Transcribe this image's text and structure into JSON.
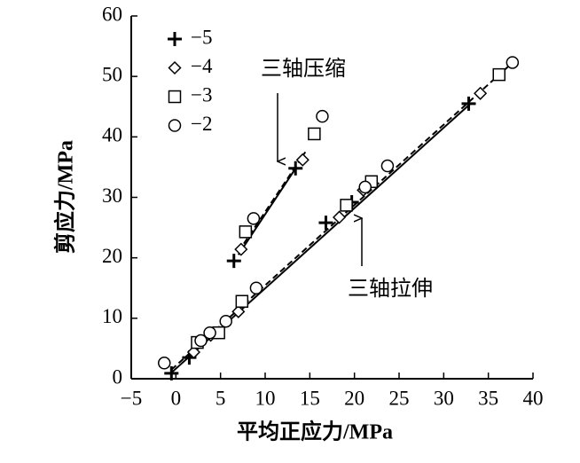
{
  "chart_data": {
    "type": "scatter",
    "xlabel": "平均正应力/MPa",
    "ylabel": "剪应力/MPa",
    "xlim": [
      -5,
      40
    ],
    "ylim": [
      0,
      60
    ],
    "xticks": [
      {
        "value": -5,
        "label": "−5"
      },
      0,
      5,
      10,
      15,
      20,
      25,
      30,
      35,
      40
    ],
    "yticks": [
      0,
      10,
      20,
      30,
      40,
      50,
      60
    ],
    "legend": "upper-left",
    "series": [
      {
        "name": "−5",
        "marker": "plus",
        "color": "#000000",
        "x": [
          -0.5,
          1.5,
          6.5,
          13.4,
          16.8,
          19.7,
          32.8
        ],
        "values": [
          0.9,
          3.5,
          19.5,
          34.8,
          25.8,
          29.2,
          45.5
        ]
      },
      {
        "name": "−4",
        "marker": "diamond",
        "color": "#000000",
        "x": [
          2,
          3.9,
          7,
          7.3,
          14.2,
          18.3,
          21,
          34.1
        ],
        "values": [
          4.4,
          7.2,
          11.1,
          21.4,
          36.2,
          26.7,
          31.2,
          47.2
        ]
      },
      {
        "name": "−3",
        "marker": "square",
        "color": "#000000",
        "x": [
          2.4,
          4.8,
          7.4,
          7.8,
          15.5,
          19.1,
          21.9,
          36.2
        ],
        "values": [
          6,
          7.6,
          12.8,
          24.3,
          40.5,
          28.7,
          32.6,
          50.3
        ]
      },
      {
        "name": "−2",
        "marker": "circle",
        "color": "#000000",
        "x": [
          -1.3,
          2.8,
          3.8,
          5.6,
          9,
          8.7,
          16.4,
          21.2,
          23.7,
          37.7
        ],
        "values": [
          2.6,
          6.3,
          7.6,
          9.5,
          15,
          26.5,
          43.4,
          31.7,
          35.2,
          52.3
        ]
      }
    ],
    "fit_lines": [
      {
        "style": "solid",
        "x": [
          7,
          13.5
        ],
        "values": [
          20.5,
          35
        ]
      },
      {
        "style": "dashed",
        "x": [
          7,
          14.5
        ],
        "values": [
          21,
          37.5
        ]
      },
      {
        "style": "solid",
        "x": [
          -0.5,
          33
        ],
        "values": [
          1,
          45.5
        ]
      },
      {
        "style": "dashed",
        "x": [
          -0.5,
          37.5
        ],
        "values": [
          1.5,
          52
        ]
      }
    ],
    "annotations": [
      "三轴压缩",
      "三轴拉伸"
    ]
  }
}
